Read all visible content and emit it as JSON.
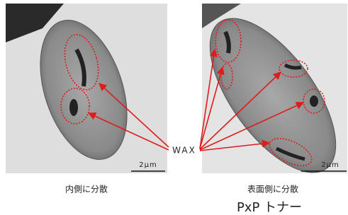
{
  "figure": {
    "left_panel": {
      "scale_bar": "2μm",
      "caption": "内側に分散"
    },
    "right_panel": {
      "scale_bar": "2μm",
      "caption": "表面側に分散"
    },
    "annotation": "WAX",
    "title": "PxP トナー"
  }
}
